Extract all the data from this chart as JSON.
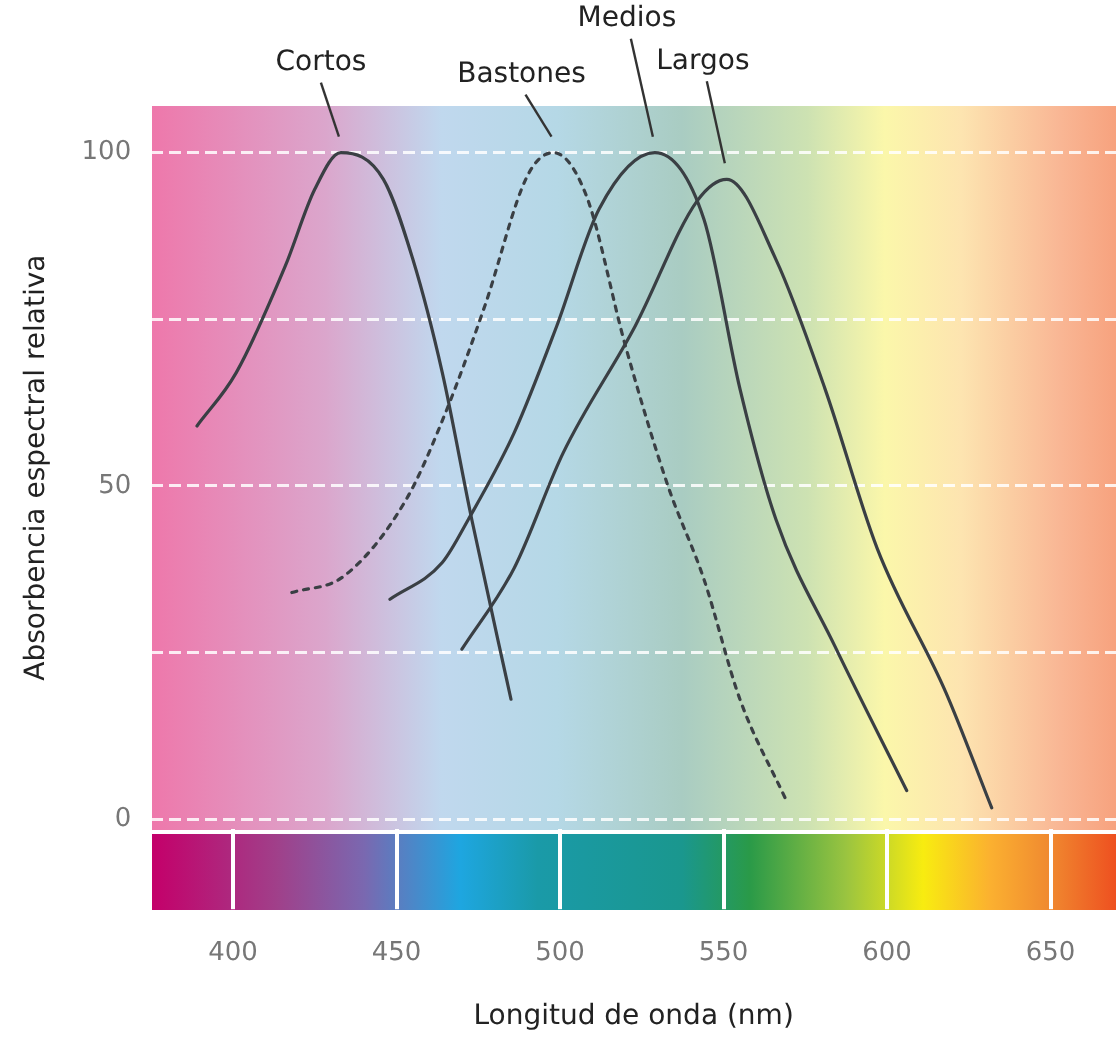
{
  "chart_data": {
    "type": "line",
    "xlabel": "Longitud de onda (nm)",
    "ylabel": "Absorbencia espectral relativa",
    "xlim": [
      375,
      670
    ],
    "xticks": [
      400,
      450,
      500,
      550,
      600,
      650
    ],
    "ylim": [
      -1.5,
      107
    ],
    "yticks": [
      0,
      {
        "value": 25,
        "label": null
      },
      50,
      {
        "value": 75,
        "label": null
      },
      100
    ],
    "grid": "y",
    "series": [
      {
        "name": "Cortos",
        "color": "#3a3f44",
        "line_style": "solid",
        "x": [
          389,
          401,
          416,
          425,
          433,
          446,
          455,
          464,
          473,
          485
        ],
        "values": [
          59,
          67,
          83,
          94.5,
          100,
          96,
          84,
          67,
          45,
          18
        ]
      },
      {
        "name": "Bastones",
        "color": "#3a3f44",
        "line_style": "dotted",
        "x": [
          418,
          434,
          453,
          465,
          477,
          490,
          498,
          508,
          520,
          533,
          544,
          555,
          569
        ],
        "values": [
          34,
          36.5,
          48,
          61,
          77,
          96.5,
          100,
          93.6,
          71,
          50,
          36,
          18,
          3
        ]
      },
      {
        "name": "Medios",
        "color": "#3a3f44",
        "line_style": "solid",
        "x": [
          448,
          464,
          472,
          486,
          499,
          512,
          529,
          544,
          555,
          566,
          584,
          606
        ],
        "values": [
          33,
          38.5,
          45,
          58,
          74,
          91.6,
          100,
          90,
          64.6,
          45,
          26,
          4.3
        ]
      },
      {
        "name": "Largos",
        "color": "#3a3f44",
        "line_style": "solid",
        "x": [
          470,
          486,
          501,
          523,
          542,
          551,
          566,
          581,
          597,
          618,
          632
        ],
        "values": [
          25.5,
          37.7,
          55,
          74,
          92.8,
          96,
          84,
          64.6,
          40.6,
          19,
          1.7
        ]
      }
    ]
  }
}
